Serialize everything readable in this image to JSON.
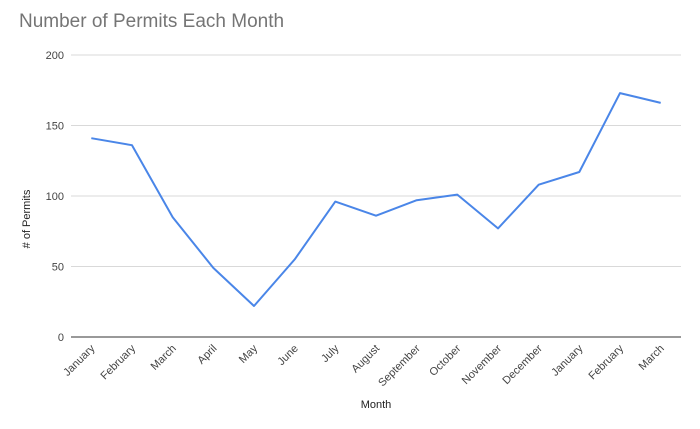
{
  "chart_data": {
    "type": "line",
    "title": "Number of Permits Each Month",
    "xlabel": "Month",
    "ylabel": "# of Permits",
    "categories": [
      "January",
      "February",
      "March",
      "April",
      "May",
      "June",
      "July",
      "August",
      "September",
      "October",
      "November",
      "December",
      "January",
      "February",
      "March"
    ],
    "series": [
      {
        "values": [
          141,
          136,
          85,
          49,
          22,
          55,
          96,
          86,
          97,
          101,
          77,
          108,
          117,
          173,
          166
        ],
        "color": "#4a86e8"
      }
    ],
    "ylim": [
      0,
      200
    ],
    "yticks": [
      0,
      50,
      100,
      150,
      200
    ],
    "grid": true,
    "legend": "none"
  }
}
